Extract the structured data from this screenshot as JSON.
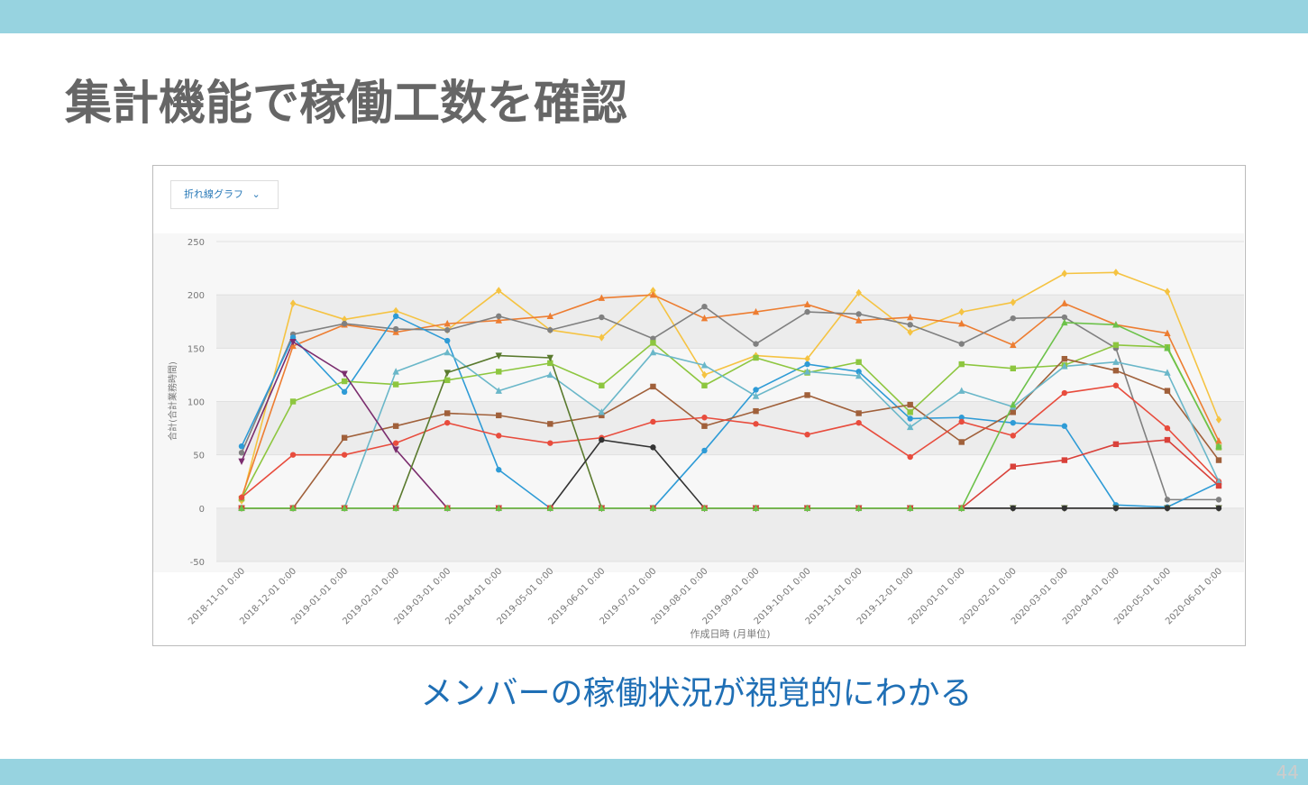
{
  "slide": {
    "title": "集計機能で稼働工数を確認",
    "dropdown": "折れ線グラフ",
    "caption": "メンバーの稼働状況が視覚的にわかる",
    "page_number": 44
  },
  "chart_data": {
    "type": "line",
    "x_label": "作成日時 (月単位)",
    "y_label": "合計(合計業務時間)",
    "categories": [
      "2018-11-01 0:00",
      "2018-12-01 0:00",
      "2019-01-01 0:00",
      "2019-02-01 0:00",
      "2019-03-01 0:00",
      "2019-04-01 0:00",
      "2019-05-01 0:00",
      "2019-06-01 0:00",
      "2019-07-01 0:00",
      "2019-08-01 0:00",
      "2019-09-01 0:00",
      "2019-10-01 0:00",
      "2019-11-01 0:00",
      "2019-12-01 0:00",
      "2020-01-01 0:00",
      "2020-02-01 0:00",
      "2020-03-01 0:00",
      "2020-04-01 0:00",
      "2020-05-01 0:00",
      "2020-06-01 0:00"
    ],
    "ylim": [
      -50,
      250
    ],
    "yticks": [
      -50,
      0,
      50,
      100,
      150,
      200,
      250
    ],
    "grid": true,
    "series": [
      {
        "color": "#f5c342",
        "marker": "diamond",
        "values": [
          7,
          192,
          177,
          185,
          167,
          204,
          167,
          160,
          204,
          125,
          143,
          140,
          202,
          165,
          184,
          193,
          220,
          221,
          203,
          83
        ]
      },
      {
        "color": "#ed7d31",
        "marker": "triangle",
        "values": [
          10,
          152,
          172,
          165,
          173,
          176,
          180,
          197,
          200,
          178,
          184,
          191,
          176,
          179,
          173,
          153,
          192,
          172,
          164,
          63
        ]
      },
      {
        "color": "#808080",
        "marker": "circle",
        "values": [
          52,
          163,
          173,
          168,
          167,
          180,
          167,
          179,
          159,
          189,
          154,
          184,
          182,
          172,
          154,
          178,
          179,
          150,
          8,
          8
        ]
      },
      {
        "color": "#2e9bd6",
        "marker": "circle",
        "values": [
          58,
          160,
          109,
          180,
          157,
          36,
          0,
          0,
          0,
          54,
          111,
          135,
          128,
          84,
          85,
          80,
          77,
          3,
          1,
          24
        ]
      },
      {
        "color": "#8dc63f",
        "marker": "square",
        "values": [
          9,
          100,
          119,
          116,
          120,
          128,
          136,
          115,
          155,
          115,
          141,
          127,
          137,
          90,
          135,
          131,
          134,
          153,
          151,
          57
        ]
      },
      {
        "color": "#a0603a",
        "marker": "square",
        "values": [
          0,
          0,
          66,
          77,
          89,
          87,
          79,
          87,
          114,
          77,
          91,
          106,
          89,
          97,
          62,
          90,
          140,
          129,
          110,
          45
        ]
      },
      {
        "color": "#e84c3d",
        "marker": "circle",
        "values": [
          10,
          50,
          50,
          61,
          80,
          68,
          61,
          66,
          81,
          85,
          79,
          69,
          80,
          48,
          81,
          68,
          108,
          115,
          75,
          25
        ]
      },
      {
        "color": "#6ab7c9",
        "marker": "triangle",
        "values": [
          0,
          0,
          0,
          128,
          146,
          110,
          125,
          90,
          146,
          134,
          105,
          128,
          124,
          76,
          110,
          95,
          133,
          137,
          127,
          25
        ]
      },
      {
        "color": "#7b2d6e",
        "marker": "down-triangle",
        "values": [
          44,
          156,
          126,
          55,
          0,
          0,
          0,
          0,
          0,
          0,
          0,
          0,
          0,
          0,
          0,
          0,
          0,
          0,
          0,
          0
        ]
      },
      {
        "color": "#5a7a2e",
        "marker": "down-triangle",
        "values": [
          0,
          0,
          0,
          0,
          127,
          143,
          141,
          0,
          0,
          0,
          0,
          0,
          0,
          0,
          0,
          0,
          0,
          0,
          0,
          0
        ]
      },
      {
        "color": "#333333",
        "marker": "circle",
        "values": [
          0,
          0,
          0,
          0,
          0,
          0,
          0,
          64,
          57,
          0,
          0,
          0,
          0,
          0,
          0,
          0,
          0,
          0,
          0,
          0
        ]
      },
      {
        "color": "#d9413a",
        "marker": "square",
        "values": [
          0,
          0,
          0,
          0,
          0,
          0,
          0,
          0,
          0,
          0,
          0,
          0,
          0,
          0,
          0,
          39,
          45,
          60,
          64,
          21
        ]
      },
      {
        "color": "#6cc24a",
        "marker": "triangle",
        "values": [
          0,
          0,
          0,
          0,
          0,
          0,
          0,
          0,
          0,
          0,
          0,
          0,
          0,
          0,
          0,
          97,
          174,
          172,
          150,
          58
        ]
      }
    ]
  }
}
